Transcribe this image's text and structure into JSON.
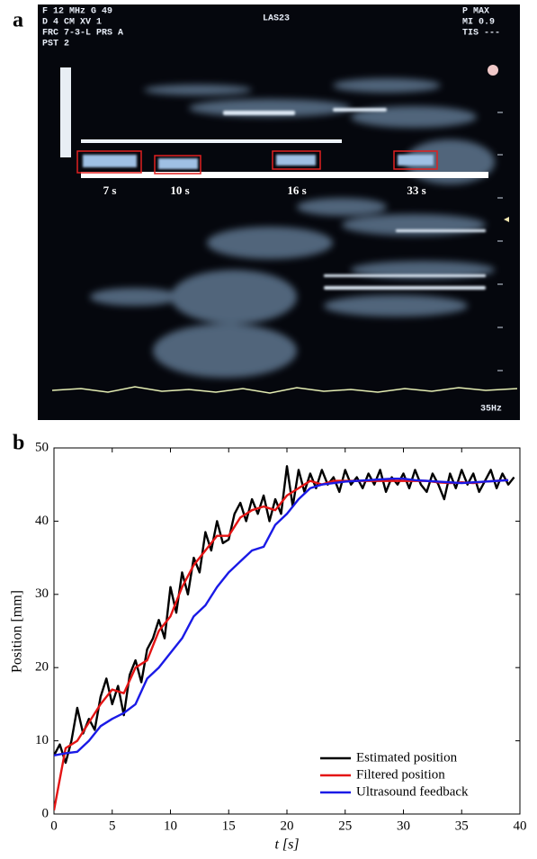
{
  "panel_a": {
    "label": "a",
    "header_left": [
      "F   12 MHz G  49",
      "D   4 CM  XV  1",
      "FRC 7-3-L  PRS  A",
      "PST 2"
    ],
    "header_center": "LAS23",
    "header_right": [
      "P MAX",
      "MI 0.9",
      "TIS ---"
    ],
    "time_labels": [
      "7 s",
      "10 s",
      "16 s",
      "33 s"
    ],
    "frame_rate": "35Hz"
  },
  "chart_data": {
    "type": "line",
    "label": "b",
    "xlabel": "t [s]",
    "ylabel": "Position [mm]",
    "xlim": [
      0,
      40
    ],
    "ylim": [
      0,
      50
    ],
    "xticks": [
      0,
      5,
      10,
      15,
      20,
      25,
      30,
      35,
      40
    ],
    "yticks": [
      0,
      10,
      20,
      30,
      40,
      50
    ],
    "legend": "lower right",
    "series": [
      {
        "name": "Estimated position",
        "color": "#000000",
        "x": [
          0,
          0.5,
          1,
          1.5,
          2,
          2.5,
          3,
          3.5,
          4,
          4.5,
          5,
          5.5,
          6,
          6.5,
          7,
          7.5,
          8,
          8.5,
          9,
          9.5,
          10,
          10.5,
          11,
          11.5,
          12,
          12.5,
          13,
          13.5,
          14,
          14.5,
          15,
          15.5,
          16,
          16.5,
          17,
          17.5,
          18,
          18.5,
          19,
          19.5,
          20,
          20.5,
          21,
          21.5,
          22,
          22.5,
          23,
          23.5,
          24,
          24.5,
          25,
          25.5,
          26,
          26.5,
          27,
          27.5,
          28,
          28.5,
          29,
          29.5,
          30,
          30.5,
          31,
          31.5,
          32,
          32.5,
          33,
          33.5,
          34,
          34.5,
          35,
          35.5,
          36,
          36.5,
          37,
          37.5,
          38,
          38.5,
          39,
          39.5
        ],
        "values": [
          8,
          9.5,
          7,
          10,
          14.5,
          11,
          13,
          11.5,
          16,
          18.5,
          15,
          17.5,
          13.5,
          19,
          21,
          18,
          22.5,
          24,
          26.5,
          24,
          31,
          27.5,
          33,
          30,
          35,
          33,
          38.5,
          36,
          40,
          37,
          37.5,
          41,
          42.5,
          40,
          43,
          41,
          43.5,
          40,
          43,
          41,
          47.5,
          42,
          47,
          44,
          46.5,
          44.5,
          47,
          45,
          46,
          44,
          47,
          45,
          46,
          44.5,
          46.5,
          45,
          47,
          44,
          46,
          45,
          46.5,
          44.5,
          47,
          45,
          44,
          46.5,
          45,
          43,
          46.5,
          44.5,
          47,
          45,
          46.5,
          44,
          45.5,
          47,
          44.5,
          46.5,
          45,
          46
        ]
      },
      {
        "name": "Filtered position",
        "color": "#e41414",
        "x": [
          0,
          1,
          2,
          3,
          4,
          5,
          6,
          7,
          8,
          9,
          10,
          11,
          12,
          13,
          14,
          15,
          16,
          17,
          18,
          19,
          20,
          21,
          22,
          23,
          24,
          25,
          26,
          27,
          28,
          29,
          30,
          31,
          32,
          33,
          34,
          35,
          36,
          37,
          38,
          39
        ],
        "values": [
          0.5,
          9,
          10,
          12.5,
          15,
          17,
          16.5,
          20,
          21,
          25,
          27,
          31,
          34,
          36,
          38,
          38,
          40.5,
          41.5,
          42,
          41.5,
          43.5,
          44.5,
          45.5,
          45,
          45.5,
          45.5,
          45.5,
          45.5,
          45.5,
          45.5,
          45.5,
          45.5,
          45.5,
          45.3,
          45.2,
          45.3,
          45.2,
          45.4,
          45.5,
          45.6
        ]
      },
      {
        "name": "Ultrasound feedback",
        "color": "#1a1ae6",
        "x": [
          0,
          1,
          2,
          3,
          4,
          5,
          6,
          7,
          8,
          9,
          10,
          11,
          12,
          13,
          14,
          15,
          16,
          17,
          18,
          19,
          20,
          21,
          22,
          23,
          24,
          25,
          26,
          27,
          28,
          29,
          30,
          31,
          32,
          33,
          34,
          35,
          36,
          37,
          38,
          39
        ],
        "values": [
          8,
          8.3,
          8.5,
          10,
          12,
          13,
          13.8,
          15,
          18.5,
          20,
          22,
          24,
          27,
          28.5,
          31,
          33,
          34.5,
          36,
          36.5,
          39.5,
          41,
          43,
          44.5,
          45,
          45.2,
          45.4,
          45.5,
          45.6,
          45.7,
          45.8,
          45.8,
          45.6,
          45.5,
          45.4,
          45.3,
          45.2,
          45.3,
          45.4,
          45.5,
          45.6
        ]
      }
    ]
  }
}
